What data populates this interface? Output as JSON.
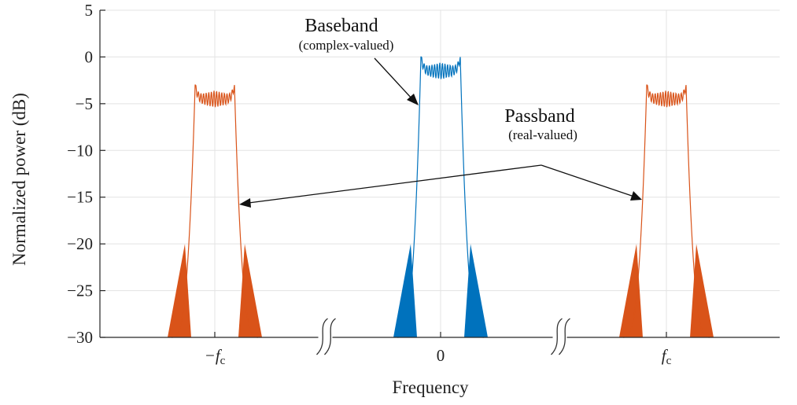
{
  "chart_data": {
    "type": "line",
    "title": "",
    "xlabel": "Frequency",
    "ylabel": "Normalized power (dB)",
    "ylim": [
      -30,
      5
    ],
    "yticks": [
      5,
      0,
      -5,
      -10,
      -15,
      -20,
      -25,
      -30
    ],
    "xticks": [
      {
        "at": -1,
        "label": "−f",
        "sub": "c"
      },
      {
        "at": 0,
        "label": "0",
        "sub": ""
      },
      {
        "at": 1,
        "label": "f",
        "sub": "c"
      }
    ],
    "grid": true,
    "axis_breaks": 2,
    "series": [
      {
        "color": "#0072bd",
        "center": 0,
        "peak_db": 0,
        "ripple_db": -1.5
      },
      {
        "color": "#d95319",
        "center": -1,
        "peak_db": -3,
        "ripple_db": -4.5
      },
      {
        "color": "#d95319",
        "center": 1,
        "peak_db": -3,
        "ripple_db": -4.5
      }
    ],
    "annotations": [
      {
        "title": "Baseband",
        "subtitle": "(complex-valued)"
      },
      {
        "title": "Passband",
        "subtitle": "(real-valued)"
      }
    ]
  }
}
